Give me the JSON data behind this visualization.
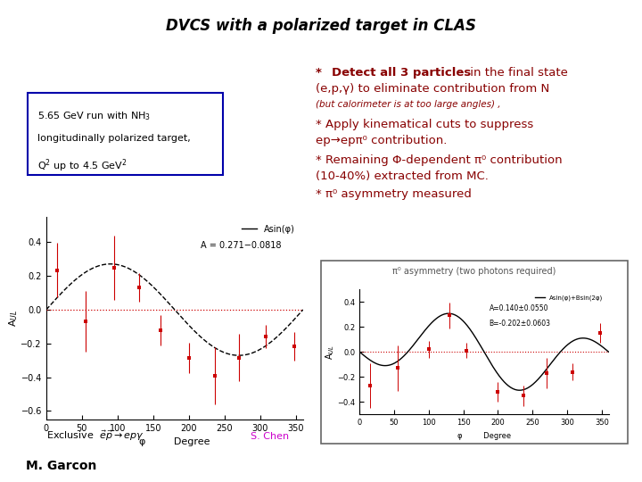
{
  "title": "DVCS with a polarized target in CLAS",
  "bg_color": "#ffffff",
  "title_box_color": "#a0a0a0",
  "title_text_color": "#000000",
  "info_box_lines": [
    "5.65 GeV run with NH$_3$",
    "longitudinally polarized target,",
    "Q$^2$ up to 4.5 GeV$^2$"
  ],
  "main_plot": {
    "phi_data": [
      15,
      55,
      95,
      130,
      160,
      200,
      237,
      270,
      308,
      348
    ],
    "y_data": [
      0.235,
      -0.07,
      0.248,
      0.13,
      -0.12,
      -0.285,
      -0.39,
      -0.285,
      -0.16,
      -0.215
    ],
    "yerr": [
      0.16,
      0.18,
      0.19,
      0.085,
      0.09,
      0.09,
      0.17,
      0.14,
      0.07,
      0.085
    ],
    "A": 0.271,
    "legend_label": "Asin(φ)",
    "fit_label": "A = 0.271−0.0818",
    "xlabel_phi": "φ",
    "xlabel_deg": "Degree",
    "ylabel": "A$_{UL}$",
    "xlim": [
      0,
      360
    ],
    "ylim": [
      -0.65,
      0.55
    ],
    "yticks": [
      -0.6,
      -0.4,
      -0.2,
      0,
      0.2,
      0.4
    ],
    "xticks": [
      0,
      50,
      100,
      150,
      200,
      250,
      300,
      350
    ]
  },
  "sub_plot": {
    "phi_data": [
      15,
      55,
      100,
      130,
      155,
      200,
      237,
      270,
      308,
      348
    ],
    "y_data": [
      -0.27,
      -0.13,
      0.02,
      0.29,
      0.01,
      -0.32,
      -0.35,
      -0.17,
      -0.16,
      0.15
    ],
    "yerr": [
      0.18,
      0.18,
      0.07,
      0.1,
      0.06,
      0.08,
      0.08,
      0.12,
      0.07,
      0.08
    ],
    "A": 0.14,
    "B": -0.202,
    "legend_label": "Asin(φ)+Bsin(2φ)",
    "fit_label1": "A=0.140±0.0550",
    "fit_label2": "B=-0.202±0.0603",
    "xlabel_phi": "φ",
    "xlabel_deg": "Degree",
    "ylabel": "A$_{UL}$",
    "xlim": [
      0,
      360
    ],
    "ylim": [
      -0.5,
      0.5
    ],
    "yticks": [
      -0.4,
      -0.2,
      0,
      0.2,
      0.4
    ],
    "xticks": [
      0,
      50,
      100,
      150,
      200,
      250,
      300,
      350
    ],
    "box_title": "π⁰ asymmetry (two photons required)"
  },
  "exclusive_text": "Exclusive  $\\vec{e}\\vec{p} \\rightarrow ep\\gamma$",
  "author_text": "S. Chen",
  "garcon_text": "M. Garcon",
  "data_color": "#cc0000",
  "fit_color": "#000000",
  "zero_line_color": "#cc0000",
  "darkred": "#880000",
  "magenta": "#cc00cc"
}
